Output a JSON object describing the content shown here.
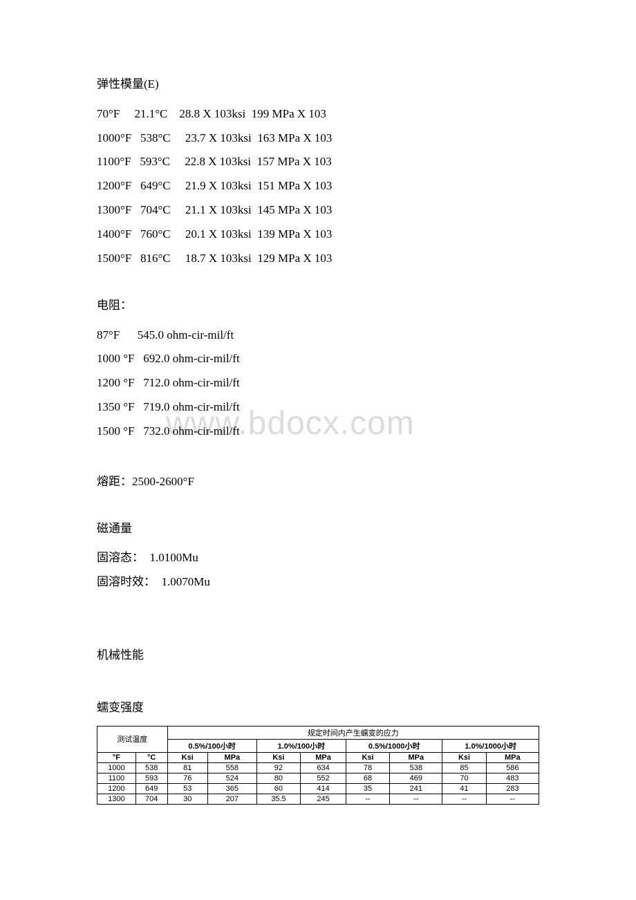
{
  "watermark": "www.bdocx.com",
  "elastic_modulus": {
    "heading": "弹性模量(E)",
    "rows": [
      {
        "f": "70°F",
        "c": "21.1°C",
        "ksi": "28.8 X 103ksi",
        "mpa": "199 MPa X 103"
      },
      {
        "f": "1000°F",
        "c": "538°C",
        "ksi": "23.7 X 103ksi",
        "mpa": "163 MPa X 103"
      },
      {
        "f": "1100°F",
        "c": "593°C",
        "ksi": "22.8 X 103ksi",
        "mpa": "157 MPa X 103"
      },
      {
        "f": "1200°F",
        "c": "649°C",
        "ksi": "21.9 X 103ksi",
        "mpa": "151 MPa X 103"
      },
      {
        "f": "1300°F",
        "c": "704°C",
        "ksi": "21.1 X 103ksi",
        "mpa": "145 MPa X 103"
      },
      {
        "f": "1400°F",
        "c": "760°C",
        "ksi": "20.1 X 103ksi",
        "mpa": "139 MPa X 103"
      },
      {
        "f": "1500°F",
        "c": "816°C",
        "ksi": "18.7 X 103ksi",
        "mpa": "129 MPa X 103"
      }
    ]
  },
  "resistance": {
    "heading": "电阻：",
    "rows": [
      {
        "temp": "87°F",
        "val": "545.0 ohm-cir-mil/ft"
      },
      {
        "temp": "1000 °F",
        "val": "692.0 ohm-cir-mil/ft"
      },
      {
        "temp": "1200 °F",
        "val": "712.0 ohm-cir-mil/ft"
      },
      {
        "temp": "1350 °F",
        "val": "719.0 ohm-cir-mil/ft"
      },
      {
        "temp": "1500 °F",
        "val": "732.0 ohm-cir-mil/ft"
      }
    ]
  },
  "melting_range": "熔距：2500-2600°F",
  "flux": {
    "heading": "磁通量",
    "solid_solution": "固溶态：  1.0100Mu",
    "aged": "固溶时效：  1.0070Mu"
  },
  "mechanical_heading": "机械性能",
  "creep": {
    "heading": "蠕变强度",
    "table": {
      "header_main": "测试温度",
      "header_stress": "规定时间内产生蠕变的应力",
      "col_groups": [
        "0.5%/100小时",
        "1.0%/100小时",
        "0.5%/1000小时",
        "1.0%/1000小时"
      ],
      "units_temp": [
        "°F",
        "°C"
      ],
      "units_stress": [
        "Ksi",
        "MPa"
      ],
      "rows": [
        {
          "f": "1000",
          "c": "538",
          "v": [
            "81",
            "558",
            "92",
            "634",
            "78",
            "538",
            "85",
            "586"
          ]
        },
        {
          "f": "1100",
          "c": "593",
          "v": [
            "76",
            "524",
            "80",
            "552",
            "68",
            "469",
            "70",
            "483"
          ]
        },
        {
          "f": "1200",
          "c": "649",
          "v": [
            "53",
            "365",
            "60",
            "414",
            "35",
            "241",
            "41",
            "283"
          ]
        },
        {
          "f": "1300",
          "c": "704",
          "v": [
            "30",
            "207",
            "35.5",
            "245",
            "--",
            "--",
            "--",
            "--"
          ]
        }
      ]
    }
  }
}
